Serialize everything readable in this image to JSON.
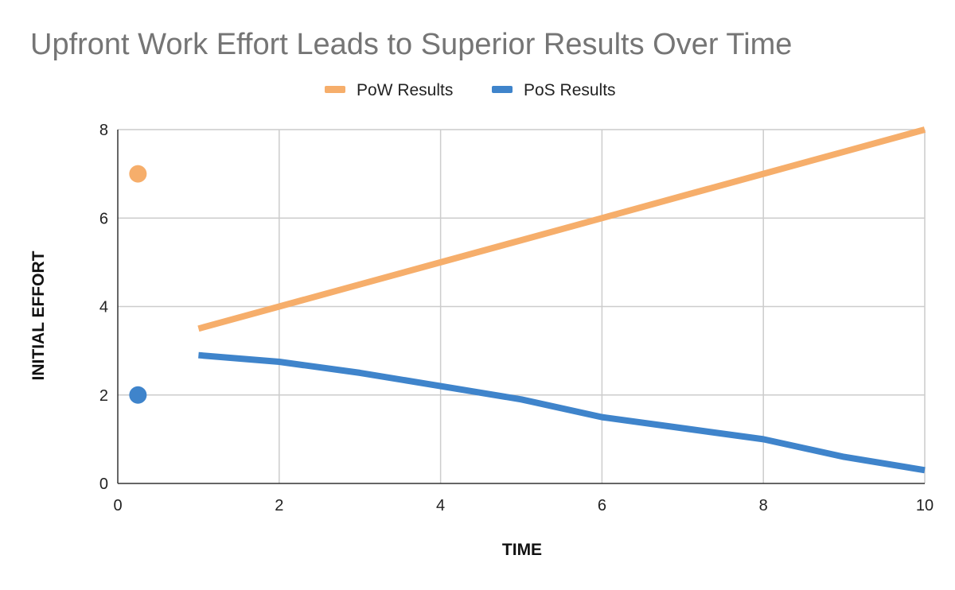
{
  "chart_data": {
    "type": "line",
    "title": "Upfront Work Effort Leads to Superior Results Over Time",
    "xlabel": "TIME",
    "ylabel": "INITIAL EFFORT",
    "xlim": [
      0,
      10
    ],
    "ylim": [
      0,
      8
    ],
    "x_ticks": [
      "0",
      "2",
      "4",
      "6",
      "8",
      "10"
    ],
    "y_ticks": [
      "0",
      "2",
      "4",
      "6",
      "8"
    ],
    "grid": true,
    "legend_position": "top",
    "series": [
      {
        "name": "PoW Results",
        "color": "#F6AE6B",
        "points": [
          [
            1,
            3.5
          ],
          [
            2,
            4
          ],
          [
            3,
            4.5
          ],
          [
            4,
            5
          ],
          [
            5,
            5.5
          ],
          [
            6,
            6
          ],
          [
            7,
            6.5
          ],
          [
            8,
            7
          ],
          [
            9,
            7.5
          ],
          [
            10,
            8
          ]
        ],
        "marker": [
          0.25,
          7
        ]
      },
      {
        "name": "PoS Results",
        "color": "#3F84CB",
        "points": [
          [
            1,
            2.9
          ],
          [
            2,
            2.75
          ],
          [
            3,
            2.5
          ],
          [
            4,
            2.2
          ],
          [
            5,
            1.9
          ],
          [
            6,
            1.5
          ],
          [
            7,
            1.25
          ],
          [
            8,
            1.0
          ],
          [
            9,
            0.6
          ],
          [
            10,
            0.3
          ]
        ],
        "marker": [
          0.25,
          2
        ]
      }
    ]
  }
}
